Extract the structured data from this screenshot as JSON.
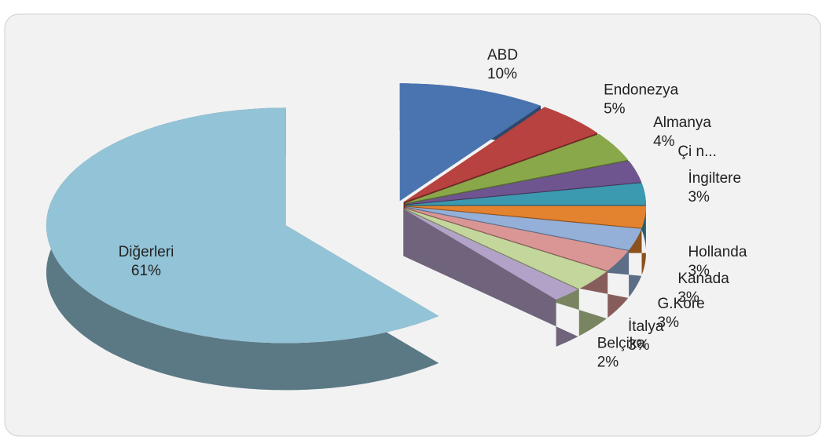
{
  "chart_data": {
    "type": "pie",
    "categories": [
      "ABD",
      "Endonezya",
      "Almanya",
      "Çi n...",
      "İngiltere",
      "Hollanda",
      "Kanada",
      "G.Kore",
      "İtalya",
      "Belçika",
      "Diğerleri"
    ],
    "values": [
      10,
      5,
      4,
      3,
      3,
      3,
      3,
      3,
      3,
      2,
      61
    ],
    "value_labels": [
      "10%",
      "5%",
      "4%",
      null,
      "3%",
      "3%",
      "3%",
      "3%",
      "3%",
      "2%",
      "61%"
    ],
    "colors": [
      "#4a74b0",
      "#b8423f",
      "#89a84a",
      "#6f558f",
      "#3b99b0",
      "#e3822f",
      "#94afd8",
      "#d99694",
      "#c3d69b",
      "#b3a2c7",
      "#93c3d6"
    ]
  }
}
